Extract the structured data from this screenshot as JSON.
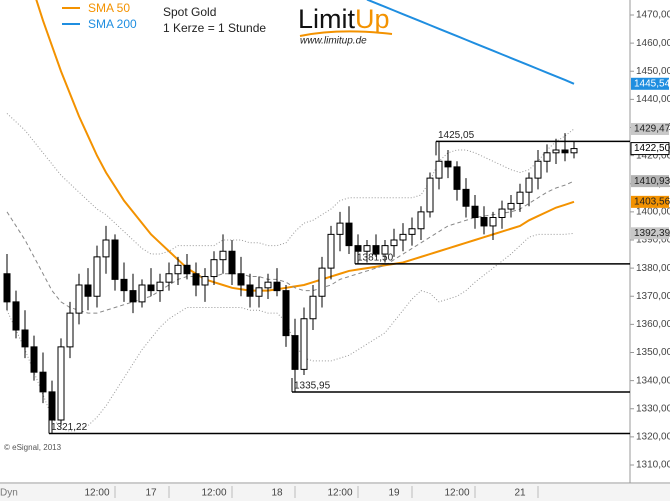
{
  "chart_data": {
    "type": "candlestick",
    "title": "Spot Gold",
    "subtitle": "1 Kerze = 1 Stunde",
    "logo": {
      "text1": "Limit",
      "text2": "Up",
      "url": "www.limitup.de"
    },
    "credit": "© eSignal, 2013",
    "corner_label": "Dyn",
    "ylim": [
      1303.6,
      1475.33
    ],
    "yticks": [
      {
        "value": 1310,
        "label": "1310,00"
      },
      {
        "value": 1320,
        "label": "1320,00"
      },
      {
        "value": 1330,
        "label": "1330,00"
      },
      {
        "value": 1340,
        "label": "1340,00"
      },
      {
        "value": 1350,
        "label": "1350,00"
      },
      {
        "value": 1360,
        "label": "1360,00"
      },
      {
        "value": 1370,
        "label": "1370,00"
      },
      {
        "value": 1380,
        "label": "1380,00"
      },
      {
        "value": 1390,
        "label": "1390,00"
      },
      {
        "value": 1400,
        "label": "1400,00"
      },
      {
        "value": 1410,
        "label": "1410,00"
      },
      {
        "value": 1420,
        "label": "1420,00"
      },
      {
        "value": 1430,
        "label": "1430,00"
      },
      {
        "value": 1440,
        "label": "1440,00"
      },
      {
        "value": 1450,
        "label": "1450,00"
      },
      {
        "value": 1460,
        "label": "1460,00"
      },
      {
        "value": 1470,
        "label": "1470,00"
      }
    ],
    "categories": [
      null,
      null,
      null,
      null,
      null,
      null,
      null,
      null,
      null,
      null,
      "12:00",
      null,
      null,
      null,
      null,
      null,
      "17",
      null,
      null,
      null,
      null,
      null,
      null,
      "12:00",
      null,
      null,
      null,
      null,
      null,
      null,
      "18",
      null,
      null,
      null,
      null,
      null,
      null,
      "12:00",
      null,
      null,
      null,
      null,
      null,
      "19",
      null,
      null,
      null,
      null,
      null,
      null,
      "12:00",
      null,
      null,
      null,
      null,
      null,
      null,
      "21",
      null,
      null,
      null,
      null,
      null,
      null
    ],
    "open": [
      1378,
      1368,
      1358,
      1352,
      1343,
      1336,
      1326,
      1352,
      1364,
      1374,
      1370,
      1384,
      1390,
      1376,
      1372,
      1368,
      1374,
      1372,
      1375,
      1378,
      1381,
      1378,
      1374,
      1377,
      1383,
      1386,
      1378,
      1374,
      1370,
      1373,
      1375,
      1372,
      1356,
      1344,
      1362,
      1370,
      1380,
      1392,
      1396,
      1388,
      1386,
      1388,
      1385,
      1388,
      1390,
      1392,
      1394,
      1400,
      1412,
      1418,
      1416,
      1408,
      1402,
      1398,
      1395,
      1398,
      1401,
      1403,
      1407,
      1412,
      1418,
      1421,
      1422,
      1421
    ],
    "high": [
      1385,
      1372,
      1365,
      1356,
      1350,
      1340,
      1355,
      1368,
      1378,
      1380,
      1388,
      1395,
      1392,
      1382,
      1378,
      1376,
      1380,
      1378,
      1382,
      1384,
      1385,
      1382,
      1380,
      1386,
      1392,
      1390,
      1384,
      1378,
      1377,
      1378,
      1380,
      1374,
      1362,
      1366,
      1374,
      1384,
      1395,
      1400,
      1402,
      1392,
      1390,
      1392,
      1390,
      1394,
      1396,
      1398,
      1402,
      1414,
      1425.05,
      1422,
      1418,
      1412,
      1406,
      1402,
      1400,
      1404,
      1406,
      1410,
      1414,
      1422,
      1424,
      1426,
      1428,
      1425
    ],
    "low": [
      1365,
      1355,
      1348,
      1340,
      1332,
      1321.22,
      1324,
      1348,
      1360,
      1365,
      1366,
      1378,
      1372,
      1368,
      1364,
      1366,
      1370,
      1368,
      1372,
      1374,
      1376,
      1370,
      1368,
      1374,
      1378,
      1374,
      1370,
      1366,
      1366,
      1369,
      1370,
      1352,
      1335.95,
      1342,
      1358,
      1366,
      1376,
      1386,
      1385,
      1381.5,
      1382,
      1384,
      1382,
      1384,
      1386,
      1388,
      1390,
      1398,
      1408,
      1412,
      1404,
      1398,
      1394,
      1392,
      1390,
      1394,
      1398,
      1400,
      1402,
      1408,
      1414,
      1417,
      1418,
      1419
    ],
    "close": [
      1368,
      1358,
      1352,
      1343,
      1336,
      1326,
      1352,
      1364,
      1374,
      1370,
      1384,
      1390,
      1376,
      1372,
      1368,
      1374,
      1372,
      1375,
      1378,
      1381,
      1378,
      1374,
      1377,
      1383,
      1386,
      1378,
      1374,
      1370,
      1373,
      1375,
      1372,
      1356,
      1344,
      1362,
      1370,
      1380,
      1392,
      1396,
      1388,
      1386,
      1388,
      1385,
      1388,
      1390,
      1392,
      1394,
      1400,
      1412,
      1418,
      1416,
      1408,
      1402,
      1398,
      1395,
      1398,
      1401,
      1403,
      1407,
      1412,
      1418,
      1421,
      1422,
      1421,
      1422.5
    ],
    "close_last_label": "1422,50",
    "series": [
      {
        "name": "SMA 50",
        "color": "#f39200",
        "style": "solid",
        "last_label": "1403,56",
        "values": [
          null,
          null,
          null,
          1478,
          1468,
          1459,
          1450,
          1442,
          1434,
          1427,
          1420,
          1414,
          1409,
          1404,
          1400,
          1396,
          1392,
          1389,
          1386,
          1383,
          1380,
          1378,
          1376,
          1375,
          1374,
          1373,
          1372.5,
          1372,
          1372,
          1372,
          1372.5,
          1373,
          1373.5,
          1374,
          1375,
          1376,
          1377,
          1378,
          1379,
          1379.5,
          1380,
          1380.5,
          1381,
          1381.5,
          1382,
          1383,
          1384,
          1385,
          1386,
          1387,
          1388,
          1389,
          1390,
          1391,
          1392,
          1393,
          1394,
          1395,
          1397,
          1398.5,
          1400,
          1401.5,
          1402.5,
          1403.56
        ]
      },
      {
        "name": "SMA 200",
        "color": "#1f8ee0",
        "style": "solid",
        "last_label": "1445,54",
        "values": [
          null,
          null,
          null,
          null,
          null,
          null,
          null,
          null,
          null,
          null,
          null,
          null,
          null,
          null,
          null,
          null,
          null,
          null,
          null,
          null,
          null,
          null,
          null,
          null,
          null,
          null,
          null,
          null,
          null,
          null,
          null,
          null,
          null,
          null,
          null,
          null,
          null,
          null,
          null,
          null,
          1475.5,
          1474.2,
          1472.9,
          1471.6,
          1470.3,
          1469,
          1467.7,
          1466.4,
          1465.1,
          1463.8,
          1462.5,
          1461.2,
          1459.9,
          1458.6,
          1457.3,
          1456,
          1454.7,
          1453.4,
          1452.1,
          1450.8,
          1449.5,
          1448.2,
          1446.9,
          1445.54
        ]
      },
      {
        "color": "#999999",
        "style": "dotted",
        "last_label": "1429,47",
        "values": [
          1435,
          1432,
          1429,
          1425,
          1421,
          1417,
          1413,
          1410,
          1407,
          1404,
          1401,
          1399,
          1396,
          1393,
          1390,
          1387,
          1385,
          1385,
          1386,
          1388,
          1388,
          1388,
          1388,
          1388,
          1390,
          1390,
          1390,
          1389,
          1389,
          1388,
          1388,
          1389,
          1393,
          1396,
          1397,
          1399,
          1401,
          1404,
          1405,
          1405,
          1405,
          1405,
          1405,
          1405,
          1405,
          1405,
          1406,
          1411,
          1418,
          1421,
          1422,
          1422,
          1421,
          1419.5,
          1418,
          1416.5,
          1415,
          1414,
          1415,
          1418,
          1422,
          1425,
          1427,
          1429.47
        ]
      },
      {
        "color": "#888888",
        "style": "dashed",
        "last_label": "1410,93",
        "values": [
          1400,
          1395,
          1390,
          1384,
          1378,
          1372,
          1368,
          1366,
          1365,
          1364,
          1364,
          1365,
          1366,
          1367,
          1368,
          1369,
          1370,
          1372,
          1374,
          1376,
          1377,
          1377,
          1377,
          1377,
          1378,
          1378,
          1378,
          1377,
          1377,
          1376,
          1376,
          1375,
          1373,
          1372,
          1372,
          1373,
          1374,
          1376,
          1377,
          1378,
          1379,
          1380,
          1381,
          1383,
          1385,
          1387,
          1389,
          1391,
          1393,
          1395,
          1396,
          1397,
          1398,
          1398.5,
          1399,
          1399.5,
          1400,
          1401,
          1403,
          1405,
          1407,
          1408.5,
          1409.5,
          1410.93
        ]
      },
      {
        "color": "#999999",
        "style": "dotted",
        "last_label": "1392,39",
        "values": [
          1365,
          1358,
          1351,
          1343,
          1335,
          1327,
          1323,
          1322,
          1323,
          1324,
          1327,
          1331,
          1336,
          1341,
          1346,
          1351,
          1355,
          1359,
          1362,
          1364,
          1366,
          1366,
          1366,
          1366,
          1366,
          1366,
          1366,
          1365,
          1365,
          1364,
          1364,
          1361,
          1353,
          1348,
          1347,
          1347,
          1347,
          1348,
          1349,
          1351,
          1353,
          1355,
          1357,
          1361,
          1365,
          1369,
          1372,
          1371,
          1368,
          1369,
          1370,
          1372,
          1375,
          1377.5,
          1380,
          1382.5,
          1385,
          1388,
          1391,
          1392,
          1392,
          1392,
          1392,
          1392.39
        ]
      }
    ],
    "levels": [
      {
        "value": 1425.05,
        "label": "1425,05"
      },
      {
        "value": 1381.5,
        "label": "1381,50"
      },
      {
        "value": 1335.95,
        "label": "1335,95"
      },
      {
        "value": 1321.22,
        "label": "1321,22"
      }
    ]
  }
}
